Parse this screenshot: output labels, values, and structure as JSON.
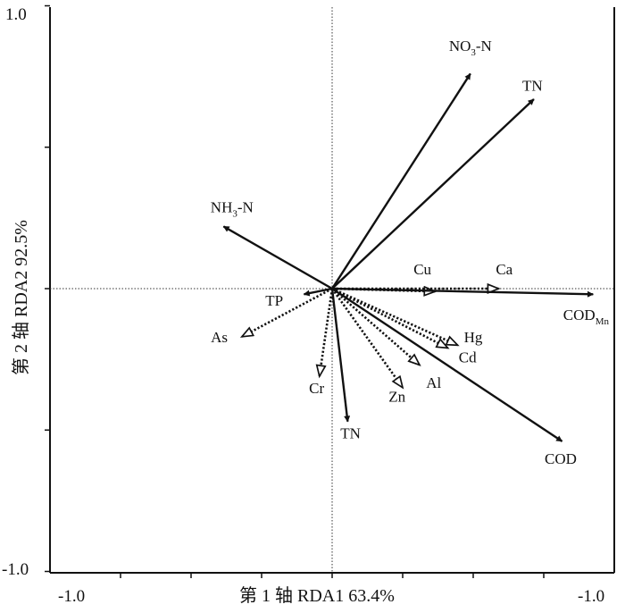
{
  "chart_data": {
    "type": "biplot",
    "xlabel": "第 1 轴 RDA1 63.4%",
    "ylabel": "第 2 轴 RDA2 92.5%",
    "xlim": [
      -1.0,
      1.0
    ],
    "ylim": [
      -1.0,
      1.0
    ],
    "x_tick_labels": [
      "-1.0",
      "-1.0"
    ],
    "y_tick_labels": [
      "1.0",
      "-1.0"
    ],
    "environmental_factors": [
      {
        "label": "NO3-N",
        "base": "NO",
        "sub": "3",
        "tail": "-N",
        "x": 0.98,
        "y": 0.76,
        "label_x": 0.98,
        "label_y": 0.84
      },
      {
        "label": "TN",
        "base": "TN",
        "sub": "",
        "tail": "",
        "x": 1.43,
        "y": 0.67,
        "label_x": 1.42,
        "label_y": 0.7
      },
      {
        "label": "NH3-N",
        "base": "NH",
        "sub": "3",
        "tail": "-N",
        "x": -0.77,
        "y": 0.22,
        "label_x": -0.71,
        "label_y": 0.27
      },
      {
        "label": "CODMn",
        "base": "COD",
        "sub": "Mn",
        "tail": "",
        "x": 1.85,
        "y": -0.02,
        "label_x": 1.8,
        "label_y": -0.11
      },
      {
        "label": "COD",
        "base": "COD",
        "sub": "",
        "tail": "",
        "x": 1.63,
        "y": -0.54,
        "label_x": 1.62,
        "label_y": -0.62
      },
      {
        "label": "TN",
        "base": "TN",
        "sub": "",
        "tail": "",
        "x": 0.11,
        "y": -0.47,
        "label_x": 0.13,
        "label_y": -0.53
      },
      {
        "label": "TP",
        "base": "TP",
        "sub": "",
        "tail": "",
        "x": -0.2,
        "y": -0.02,
        "label_x": -0.41,
        "label_y": -0.06
      }
    ],
    "species": [
      {
        "label": "Cu",
        "x": 0.73,
        "y": -0.01,
        "label_x": 0.64,
        "label_y": 0.05
      },
      {
        "label": "Ca",
        "x": 1.18,
        "y": 0.0,
        "label_x": 1.22,
        "label_y": 0.05
      },
      {
        "label": "Hg",
        "x": 0.89,
        "y": -0.2,
        "label_x": 1.0,
        "label_y": -0.19
      },
      {
        "label": "Cd",
        "x": 0.82,
        "y": -0.21,
        "label_x": 0.96,
        "label_y": -0.26
      },
      {
        "label": "Al",
        "x": 0.62,
        "y": -0.27,
        "label_x": 0.72,
        "label_y": -0.35
      },
      {
        "label": "Zn",
        "x": 0.5,
        "y": -0.35,
        "label_x": 0.46,
        "label_y": -0.4
      },
      {
        "label": "Cr",
        "x": -0.09,
        "y": -0.31,
        "label_x": -0.11,
        "label_y": -0.37
      },
      {
        "label": "As",
        "x": -0.64,
        "y": -0.17,
        "label_x": -0.8,
        "label_y": -0.19
      }
    ]
  }
}
